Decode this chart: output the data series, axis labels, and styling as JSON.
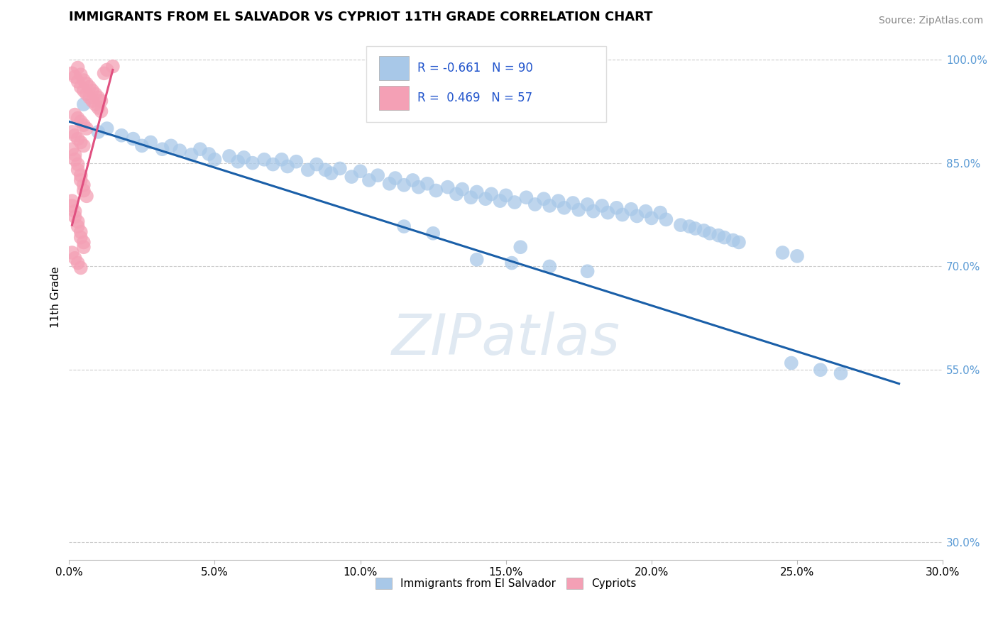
{
  "title": "IMMIGRANTS FROM EL SALVADOR VS CYPRIOT 11TH GRADE CORRELATION CHART",
  "source": "Source: ZipAtlas.com",
  "xlabel_label": "Immigrants from El Salvador",
  "ylabel_label": "11th Grade",
  "legend_label1": "Immigrants from El Salvador",
  "legend_label2": "Cypriots",
  "r1": "-0.661",
  "n1": "90",
  "r2": "0.469",
  "n2": "57",
  "xmin": 0.0,
  "xmax": 0.3,
  "ymin": 0.275,
  "ymax": 1.035,
  "color_blue": "#a8c8e8",
  "color_pink": "#f4a0b5",
  "color_blue_line": "#1a5fa8",
  "color_pink_line": "#e05080",
  "watermark": "ZIPatlas",
  "yticks": [
    0.3,
    0.55,
    0.7,
    0.85,
    1.0
  ],
  "ytick_labels": [
    "30.0%",
    "55.0%",
    "70.0%",
    "85.0%",
    "100.0%"
  ],
  "xticks": [
    0.0,
    0.05,
    0.1,
    0.15,
    0.2,
    0.25,
    0.3
  ],
  "xtick_labels": [
    "0.0%",
    "5.0%",
    "10.0%",
    "15.0%",
    "20.0%",
    "25.0%",
    "30.0%"
  ],
  "blue_scatter_x": [
    0.005,
    0.01,
    0.013,
    0.018,
    0.022,
    0.025,
    0.028,
    0.032,
    0.035,
    0.038,
    0.042,
    0.045,
    0.048,
    0.05,
    0.055,
    0.058,
    0.06,
    0.063,
    0.067,
    0.07,
    0.073,
    0.075,
    0.078,
    0.082,
    0.085,
    0.088,
    0.09,
    0.093,
    0.097,
    0.1,
    0.103,
    0.106,
    0.11,
    0.112,
    0.115,
    0.118,
    0.12,
    0.123,
    0.126,
    0.13,
    0.133,
    0.135,
    0.138,
    0.14,
    0.143,
    0.145,
    0.148,
    0.15,
    0.153,
    0.157,
    0.16,
    0.163,
    0.165,
    0.168,
    0.17,
    0.173,
    0.175,
    0.178,
    0.18,
    0.183,
    0.185,
    0.188,
    0.19,
    0.193,
    0.195,
    0.198,
    0.2,
    0.203,
    0.205,
    0.21,
    0.213,
    0.215,
    0.218,
    0.22,
    0.223,
    0.225,
    0.228,
    0.23,
    0.245,
    0.25,
    0.14,
    0.152,
    0.165,
    0.178,
    0.115,
    0.125,
    0.155,
    0.248,
    0.258,
    0.265
  ],
  "blue_scatter_y": [
    0.935,
    0.895,
    0.9,
    0.89,
    0.885,
    0.875,
    0.88,
    0.87,
    0.875,
    0.868,
    0.862,
    0.87,
    0.863,
    0.855,
    0.86,
    0.852,
    0.858,
    0.85,
    0.855,
    0.848,
    0.855,
    0.845,
    0.852,
    0.84,
    0.848,
    0.84,
    0.835,
    0.842,
    0.83,
    0.838,
    0.825,
    0.832,
    0.82,
    0.828,
    0.818,
    0.825,
    0.815,
    0.82,
    0.81,
    0.815,
    0.805,
    0.812,
    0.8,
    0.808,
    0.798,
    0.805,
    0.795,
    0.803,
    0.793,
    0.8,
    0.79,
    0.798,
    0.788,
    0.795,
    0.785,
    0.792,
    0.782,
    0.79,
    0.78,
    0.788,
    0.778,
    0.785,
    0.775,
    0.783,
    0.773,
    0.78,
    0.77,
    0.778,
    0.768,
    0.76,
    0.758,
    0.755,
    0.752,
    0.748,
    0.745,
    0.742,
    0.738,
    0.735,
    0.72,
    0.715,
    0.71,
    0.705,
    0.7,
    0.693,
    0.758,
    0.748,
    0.728,
    0.56,
    0.55,
    0.545
  ],
  "pink_scatter_x": [
    0.001,
    0.002,
    0.003,
    0.003,
    0.004,
    0.004,
    0.005,
    0.005,
    0.006,
    0.006,
    0.007,
    0.007,
    0.008,
    0.008,
    0.009,
    0.009,
    0.01,
    0.01,
    0.011,
    0.011,
    0.002,
    0.003,
    0.004,
    0.005,
    0.006,
    0.001,
    0.002,
    0.003,
    0.004,
    0.005,
    0.001,
    0.002,
    0.002,
    0.003,
    0.003,
    0.004,
    0.004,
    0.005,
    0.005,
    0.006,
    0.001,
    0.001,
    0.002,
    0.002,
    0.003,
    0.003,
    0.004,
    0.004,
    0.005,
    0.005,
    0.001,
    0.002,
    0.003,
    0.004,
    0.012,
    0.013,
    0.015
  ],
  "pink_scatter_y": [
    0.98,
    0.975,
    0.988,
    0.968,
    0.978,
    0.96,
    0.97,
    0.955,
    0.965,
    0.95,
    0.96,
    0.945,
    0.955,
    0.94,
    0.95,
    0.935,
    0.945,
    0.93,
    0.94,
    0.925,
    0.92,
    0.915,
    0.91,
    0.905,
    0.9,
    0.895,
    0.89,
    0.885,
    0.88,
    0.875,
    0.87,
    0.862,
    0.855,
    0.848,
    0.84,
    0.832,
    0.825,
    0.818,
    0.81,
    0.802,
    0.795,
    0.788,
    0.78,
    0.772,
    0.765,
    0.758,
    0.75,
    0.742,
    0.735,
    0.728,
    0.72,
    0.712,
    0.705,
    0.698,
    0.98,
    0.985,
    0.99
  ],
  "blue_line_x": [
    0.0,
    0.285
  ],
  "blue_line_y": [
    0.91,
    0.53
  ],
  "pink_line_x": [
    0.001,
    0.015
  ],
  "pink_line_y": [
    0.76,
    0.985
  ]
}
